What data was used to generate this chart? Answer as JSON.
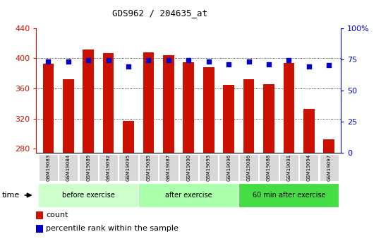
{
  "title": "GDS962 / 204635_at",
  "samples": [
    "GSM19083",
    "GSM19084",
    "GSM19089",
    "GSM19092",
    "GSM19095",
    "GSM19085",
    "GSM19087",
    "GSM19090",
    "GSM19093",
    "GSM19096",
    "GSM19086",
    "GSM19088",
    "GSM19091",
    "GSM19094",
    "GSM19097"
  ],
  "counts": [
    393,
    372,
    412,
    407,
    317,
    408,
    404,
    395,
    388,
    365,
    372,
    366,
    394,
    333,
    292
  ],
  "percentiles": [
    73,
    73,
    74,
    74,
    69,
    74,
    74,
    74,
    73,
    71,
    73,
    71,
    74,
    69,
    70
  ],
  "ylim_left": [
    275,
    440
  ],
  "ylim_right": [
    0,
    100
  ],
  "yticks_left": [
    280,
    320,
    360,
    400,
    440
  ],
  "yticks_right": [
    0,
    25,
    50,
    75,
    100
  ],
  "bar_color": "#cc1100",
  "dot_color": "#0000cc",
  "groups": [
    {
      "label": "before exercise",
      "start": 0,
      "end": 5,
      "color": "#ccffcc"
    },
    {
      "label": "after exercise",
      "start": 5,
      "end": 10,
      "color": "#aaffaa"
    },
    {
      "label": "60 min after exercise",
      "start": 10,
      "end": 15,
      "color": "#44dd44"
    }
  ],
  "legend_count": "count",
  "legend_pct": "percentile rank within the sample",
  "bar_width": 0.55,
  "base_value": 275,
  "grid_lines": [
    320,
    360,
    400
  ],
  "bg_color": "#ffffff",
  "plot_bg": "#ffffff"
}
